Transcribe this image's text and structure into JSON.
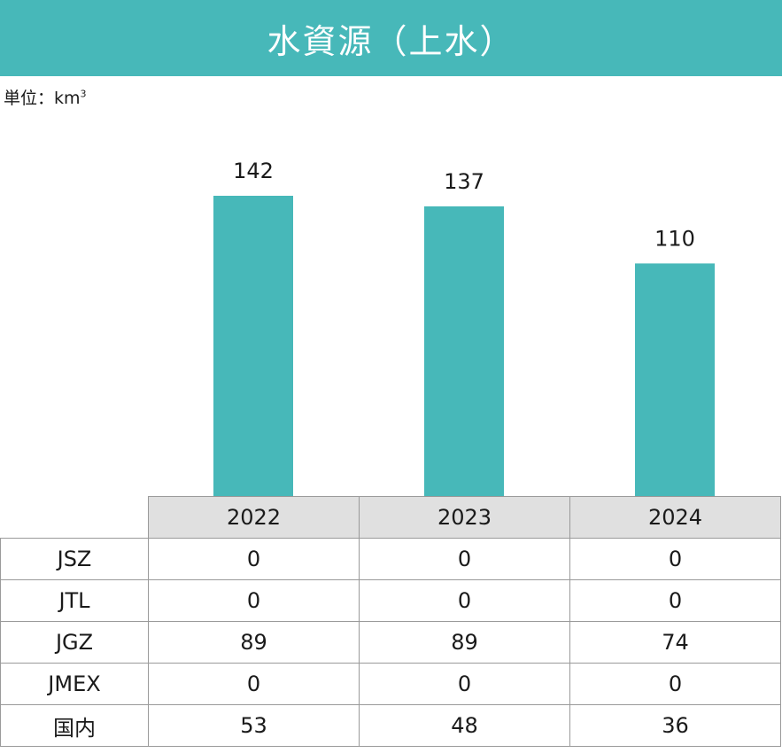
{
  "title": "水資源（上水）",
  "unit": {
    "label": "単位：km",
    "sup": "3"
  },
  "colors": {
    "accent": "#47b8b9",
    "header_bg": "#e0e0e0",
    "grid": "#9a9a9a"
  },
  "chart_data": {
    "type": "bar",
    "categories": [
      "2022",
      "2023",
      "2024"
    ],
    "values": [
      142,
      137,
      110
    ],
    "ylim": [
      0,
      142
    ]
  },
  "table": {
    "years": [
      "2022",
      "2023",
      "2024"
    ],
    "rows": [
      {
        "label": "JSZ",
        "values": [
          "0",
          "0",
          "0"
        ]
      },
      {
        "label": "JTL",
        "values": [
          "0",
          "0",
          "0"
        ]
      },
      {
        "label": "JGZ",
        "values": [
          "89",
          "89",
          "74"
        ]
      },
      {
        "label": "JMEX",
        "values": [
          "0",
          "0",
          "0"
        ]
      },
      {
        "label": "国内",
        "values": [
          "53",
          "48",
          "36"
        ]
      }
    ]
  }
}
